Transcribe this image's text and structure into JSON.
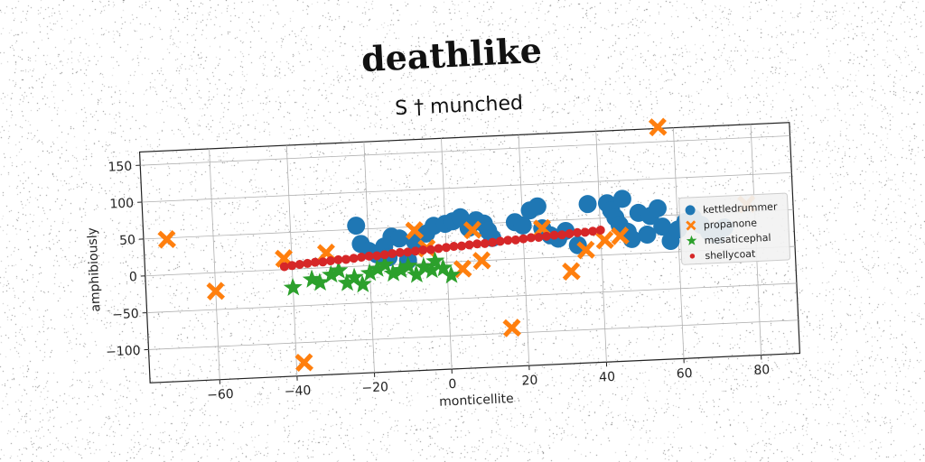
{
  "chart_data": {
    "type": "scatter",
    "title": "deathlike",
    "subtitle": "S † munched",
    "xlabel": "monticellite",
    "ylabel": "amphibiously",
    "xlim": [
      -78,
      90
    ],
    "ylim": [
      -145,
      168
    ],
    "xticks": [
      -60,
      -40,
      -20,
      0,
      20,
      40,
      60,
      80
    ],
    "yticks": [
      150,
      100,
      50,
      0,
      -50,
      -100
    ],
    "grid": true,
    "legend_position": "right",
    "series": [
      {
        "name": "kettledrummer",
        "color": "#1f77b4",
        "marker": "circle",
        "points": [
          [
            -23,
            55
          ],
          [
            -22,
            30
          ],
          [
            -20,
            20
          ],
          [
            -18,
            15
          ],
          [
            -16,
            25
          ],
          [
            -15,
            10
          ],
          [
            -14,
            38
          ],
          [
            -12,
            35
          ],
          [
            -10,
            5
          ],
          [
            -8,
            30
          ],
          [
            -5,
            40
          ],
          [
            -3,
            50
          ],
          [
            0,
            52
          ],
          [
            2,
            55
          ],
          [
            4,
            60
          ],
          [
            6,
            45
          ],
          [
            8,
            55
          ],
          [
            10,
            50
          ],
          [
            11,
            40
          ],
          [
            12,
            30
          ],
          [
            18,
            50
          ],
          [
            20,
            45
          ],
          [
            22,
            65
          ],
          [
            24,
            70
          ],
          [
            25,
            40
          ],
          [
            27,
            30
          ],
          [
            29,
            25
          ],
          [
            31,
            35
          ],
          [
            34,
            15
          ],
          [
            37,
            70
          ],
          [
            42,
            70
          ],
          [
            43,
            60
          ],
          [
            44,
            50
          ],
          [
            45,
            40
          ],
          [
            46,
            75
          ],
          [
            47,
            30
          ],
          [
            48,
            20
          ],
          [
            50,
            55
          ],
          [
            52,
            25
          ],
          [
            53,
            50
          ],
          [
            55,
            60
          ],
          [
            56,
            35
          ],
          [
            58,
            15
          ],
          [
            60,
            30
          ],
          [
            62,
            40
          ],
          [
            64,
            45
          ],
          [
            66,
            35
          ],
          [
            68,
            25
          ],
          [
            70,
            20
          ],
          [
            72,
            30
          ]
        ]
      },
      {
        "name": "propanone",
        "color": "#ff7f0e",
        "marker": "x",
        "points": [
          [
            -72,
            48
          ],
          [
            -60,
            -25
          ],
          [
            -42,
            15
          ],
          [
            -38,
            -127
          ],
          [
            -31,
            20
          ],
          [
            -8,
            45
          ],
          [
            -5,
            20
          ],
          [
            4,
            -10
          ],
          [
            7,
            42
          ],
          [
            9,
            0
          ],
          [
            16,
            -93
          ],
          [
            25,
            40
          ],
          [
            32,
            -20
          ],
          [
            36,
            8
          ],
          [
            41,
            20
          ],
          [
            45,
            25
          ],
          [
            56,
            170
          ],
          [
            78,
            60
          ]
        ]
      },
      {
        "name": "mesaticephal",
        "color": "#2ca02c",
        "marker": "star",
        "points": [
          [
            -40,
            -25
          ],
          [
            -35,
            -15
          ],
          [
            -33,
            -20
          ],
          [
            -30,
            -10
          ],
          [
            -28,
            -5
          ],
          [
            -26,
            -22
          ],
          [
            -24,
            -15
          ],
          [
            -22,
            -25
          ],
          [
            -20,
            -10
          ],
          [
            -18,
            -5
          ],
          [
            -16,
            0
          ],
          [
            -14,
            -12
          ],
          [
            -12,
            -8
          ],
          [
            -10,
            -3
          ],
          [
            -8,
            -15
          ],
          [
            -6,
            -5
          ],
          [
            -4,
            -10
          ],
          [
            -3,
            2
          ],
          [
            -1,
            -8
          ],
          [
            1,
            -18
          ]
        ]
      },
      {
        "name": "shellycoat",
        "color": "#d62728",
        "marker": "dot",
        "points": [
          [
            -42,
            4
          ],
          [
            -40,
            5
          ],
          [
            -38,
            6
          ],
          [
            -36,
            7
          ],
          [
            -34,
            8
          ],
          [
            -32,
            8
          ],
          [
            -30,
            9
          ],
          [
            -28,
            10
          ],
          [
            -26,
            10
          ],
          [
            -24,
            11
          ],
          [
            -22,
            12
          ],
          [
            -20,
            13
          ],
          [
            -18,
            13
          ],
          [
            -16,
            14
          ],
          [
            -14,
            15
          ],
          [
            -12,
            16
          ],
          [
            -10,
            16
          ],
          [
            -8,
            17
          ],
          [
            -6,
            18
          ],
          [
            -4,
            18
          ],
          [
            -2,
            19
          ],
          [
            0,
            20
          ],
          [
            2,
            21
          ],
          [
            4,
            21
          ],
          [
            6,
            22
          ],
          [
            8,
            23
          ],
          [
            10,
            23
          ],
          [
            12,
            24
          ],
          [
            14,
            25
          ],
          [
            16,
            26
          ],
          [
            18,
            26
          ],
          [
            20,
            27
          ],
          [
            22,
            28
          ],
          [
            24,
            28
          ],
          [
            26,
            29
          ],
          [
            28,
            30
          ],
          [
            30,
            30
          ],
          [
            32,
            31
          ],
          [
            34,
            32
          ],
          [
            36,
            32
          ],
          [
            38,
            33
          ],
          [
            40,
            34
          ]
        ]
      }
    ]
  }
}
